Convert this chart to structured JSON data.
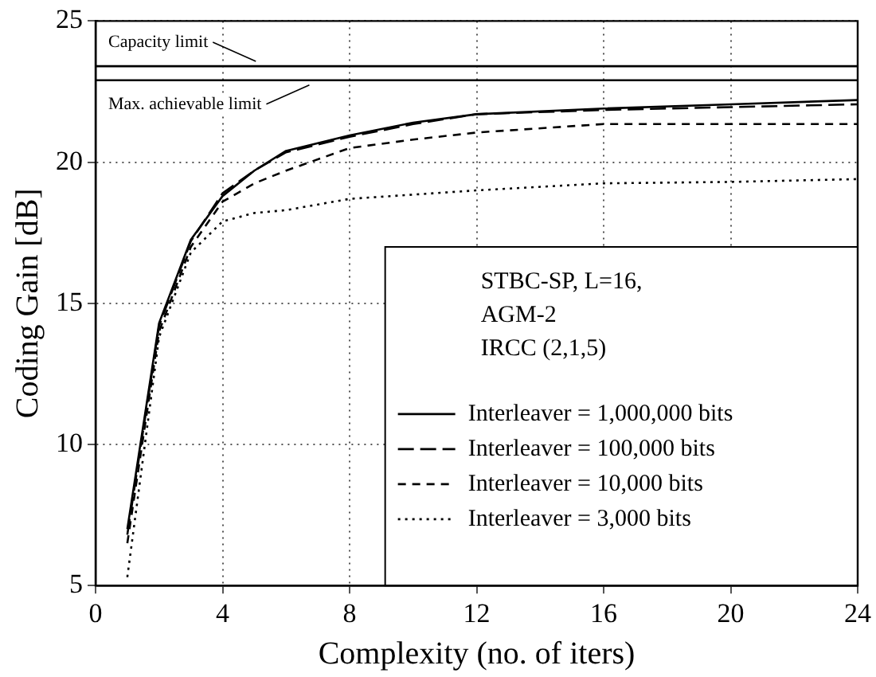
{
  "chart_data": {
    "type": "line",
    "xlabel": "Complexity (no. of iters)",
    "ylabel": "Coding Gain [dB]",
    "legend_title": "STBC-SP, L=16,\nAGM-2\nIRCC (2,1,5)",
    "x": [
      1,
      2,
      3,
      4,
      5,
      6,
      8,
      10,
      12,
      16,
      20,
      24
    ],
    "series": [
      {
        "name": "Interleaver = 1,000,000 bits",
        "color": "#000000",
        "line_style": "solid",
        "values": [
          7.0,
          14.3,
          17.25,
          18.8,
          19.7,
          20.4,
          20.95,
          21.4,
          21.7,
          21.9,
          22.05,
          22.2
        ]
      },
      {
        "name": "Interleaver = 100,000 bits",
        "color": "#000000",
        "line_style": "dashed",
        "values": [
          6.8,
          14.2,
          17.2,
          18.9,
          19.7,
          20.35,
          20.9,
          21.35,
          21.7,
          21.85,
          21.95,
          22.05
        ]
      },
      {
        "name": "Interleaver = 10,000 bits",
        "color": "#000000",
        "line_style": "dashed",
        "values": [
          6.5,
          14.0,
          17.0,
          18.6,
          19.25,
          19.7,
          20.5,
          20.8,
          21.05,
          21.35,
          21.35,
          21.35
        ]
      },
      {
        "name": "Interleaver = 3,000 bits",
        "color": "#000000",
        "line_style": "dotted",
        "values": [
          5.3,
          13.8,
          16.8,
          17.9,
          18.2,
          18.3,
          18.7,
          18.85,
          19.0,
          19.25,
          19.3,
          19.4
        ]
      }
    ],
    "xlim": [
      0,
      24
    ],
    "xticks": [
      0,
      4,
      8,
      12,
      16,
      20,
      24
    ],
    "ylim": [
      5,
      25
    ],
    "yticks": [
      5,
      10,
      15,
      20,
      25
    ],
    "ref_lines": [
      {
        "axis": "y",
        "value": 23.4,
        "label": "Capacity limit",
        "color": "#000000"
      },
      {
        "axis": "y",
        "value": 22.9,
        "label": "Max. achievable limit",
        "color": "#000000"
      }
    ],
    "grid": true,
    "legend": "bottom right",
    "marker": "none"
  }
}
